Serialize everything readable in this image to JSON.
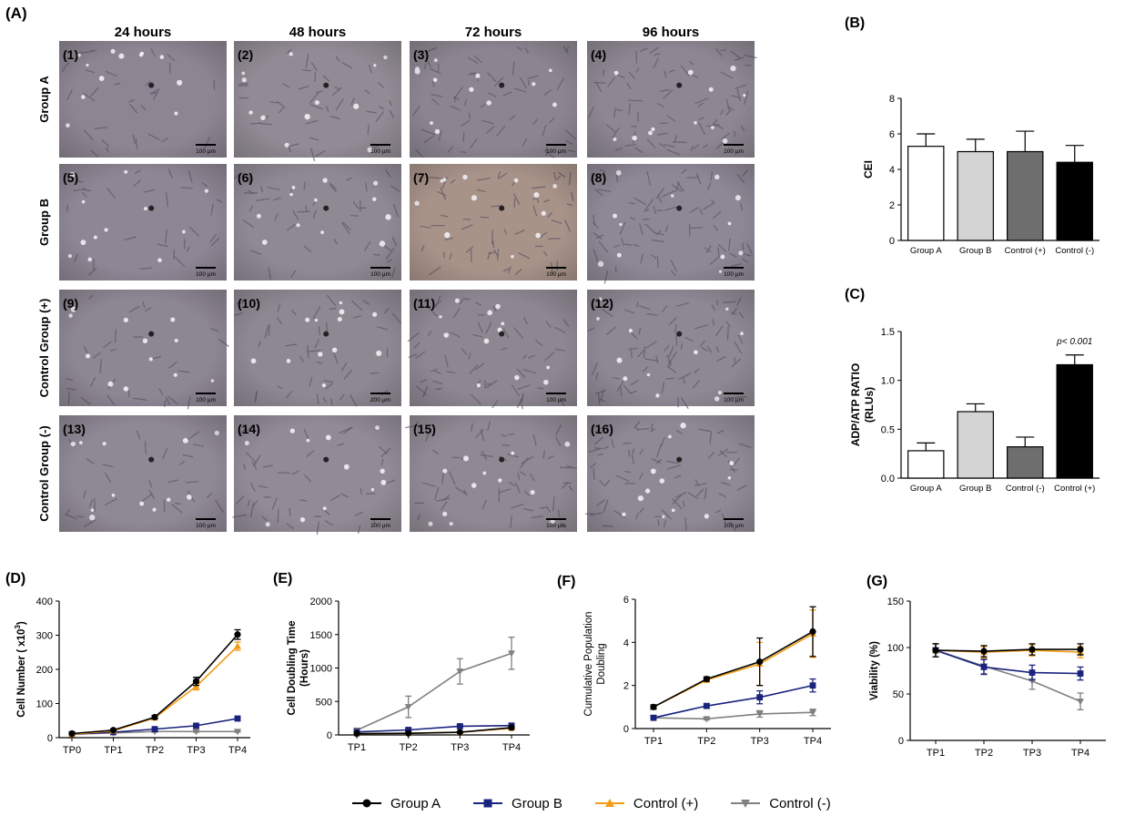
{
  "panel_a": {
    "label": "(A)",
    "columns": [
      "24 hours",
      "48 hours",
      "72 hours",
      "96 hours"
    ],
    "rows": [
      "Group A",
      "Group B",
      "Control Group (+)",
      "Control Group (-)"
    ],
    "tiles": [
      "(1)",
      "(2)",
      "(3)",
      "(4)",
      "(5)",
      "(6)",
      "(7)",
      "(8)",
      "(9)",
      "(10)",
      "(11)",
      "(12)",
      "(13)",
      "(14)",
      "(15)",
      "(16)"
    ],
    "scale_bar": "100 µm"
  },
  "colors": {
    "group_a": "#000000",
    "group_b": "#1a237e",
    "control_pos": "#f39c12",
    "control_neg": "#808080",
    "bar_white": "#ffffff",
    "bar_light": "#d4d4d4",
    "bar_dark": "#6e6e6e",
    "bar_black": "#000000"
  },
  "legend": [
    {
      "label": "Group A",
      "color": "#000000",
      "marker": "circle"
    },
    {
      "label": "Group B",
      "color": "#1a237e",
      "marker": "square"
    },
    {
      "label": "Control (+)",
      "color": "#f39c12",
      "marker": "triangle-up"
    },
    {
      "label": "Control (-)",
      "color": "#808080",
      "marker": "triangle-down"
    }
  ],
  "chart_data": [
    {
      "id": "B",
      "label": "(B)",
      "type": "bar",
      "categories": [
        "Group A",
        "Group B",
        "Control (+)",
        "Control (-)"
      ],
      "values": [
        5.3,
        5.0,
        5.0,
        4.4
      ],
      "errors": [
        0.7,
        0.7,
        1.15,
        0.95
      ],
      "bar_colors": [
        "#ffffff",
        "#d4d4d4",
        "#6e6e6e",
        "#000000"
      ],
      "ylabel": "CEI",
      "ylim": [
        0,
        8
      ],
      "yticks": [
        "0",
        "2",
        "4",
        "6",
        "8"
      ]
    },
    {
      "id": "C",
      "label": "(C)",
      "type": "bar",
      "categories": [
        "Group A",
        "Group B",
        "Control (-)",
        "Control (+)"
      ],
      "values": [
        0.28,
        0.68,
        0.32,
        1.16
      ],
      "errors": [
        0.08,
        0.08,
        0.1,
        0.1
      ],
      "bar_colors": [
        "#ffffff",
        "#d4d4d4",
        "#6e6e6e",
        "#000000"
      ],
      "ylabel": "ADP/ATP RATIO",
      "ylabel2": "(RLUs)",
      "ylim": [
        0,
        1.5
      ],
      "yticks": [
        "0.0",
        "0.5",
        "1.0",
        "1.5"
      ],
      "annotation": "p< 0.001"
    },
    {
      "id": "D",
      "label": "(D)",
      "type": "line",
      "x": [
        "TP0",
        "TP1",
        "TP2",
        "TP3",
        "TP4"
      ],
      "ylabel": "Cell Number ( x10",
      "ylabel_sup": "3",
      "ylabel_end": ")",
      "ylim": [
        0,
        400
      ],
      "yticks": [
        "0",
        "100",
        "200",
        "300",
        "400"
      ],
      "series": [
        {
          "name": "Group A",
          "values": [
            12,
            22,
            60,
            165,
            302
          ],
          "errors": [
            3,
            3,
            5,
            12,
            14
          ]
        },
        {
          "name": "Group B",
          "values": [
            10,
            16,
            25,
            35,
            56
          ],
          "errors": [
            2,
            2,
            3,
            4,
            4
          ]
        },
        {
          "name": "Control (+)",
          "values": [
            10,
            20,
            58,
            150,
            268
          ],
          "errors": [
            3,
            3,
            5,
            10,
            12
          ]
        },
        {
          "name": "Control (-)",
          "values": [
            10,
            14,
            18,
            18,
            18
          ],
          "errors": [
            2,
            2,
            2,
            2,
            2
          ]
        }
      ]
    },
    {
      "id": "E",
      "label": "(E)",
      "type": "line",
      "x": [
        "TP1",
        "TP2",
        "TP3",
        "TP4"
      ],
      "ylabel": "Cell Doubling Time",
      "ylabel2": "(Hours)",
      "ylim": [
        0,
        2000
      ],
      "yticks": [
        "0",
        "500",
        "1000",
        "1500",
        "2000"
      ],
      "series": [
        {
          "name": "Group A",
          "values": [
            20,
            25,
            40,
            110
          ],
          "errors": [
            5,
            5,
            10,
            20
          ]
        },
        {
          "name": "Group B",
          "values": [
            45,
            75,
            130,
            140
          ],
          "errors": [
            10,
            15,
            20,
            25
          ]
        },
        {
          "name": "Control (+)",
          "values": [
            20,
            25,
            40,
            100
          ],
          "errors": [
            5,
            5,
            10,
            20
          ]
        },
        {
          "name": "Control (-)",
          "values": [
            70,
            420,
            950,
            1220
          ],
          "errors": [
            20,
            160,
            190,
            240
          ]
        }
      ]
    },
    {
      "id": "F",
      "label": "(F)",
      "type": "line",
      "x": [
        "TP1",
        "TP2",
        "TP3",
        "TP4"
      ],
      "ylabel": "Cumulative Population",
      "ylabel2": "Doubling",
      "ylim": [
        0,
        6
      ],
      "yticks": [
        "0",
        "2",
        "4",
        "6"
      ],
      "series": [
        {
          "name": "Group A",
          "values": [
            1.0,
            2.3,
            3.1,
            4.5
          ],
          "errors": [
            0.1,
            0.1,
            1.1,
            1.15
          ]
        },
        {
          "name": "Group B",
          "values": [
            0.5,
            1.05,
            1.45,
            2.0
          ],
          "errors": [
            0.05,
            0.1,
            0.3,
            0.3
          ]
        },
        {
          "name": "Control (+)",
          "values": [
            1.0,
            2.25,
            3.0,
            4.4
          ],
          "errors": [
            0.1,
            0.1,
            1.0,
            1.1
          ]
        },
        {
          "name": "Control (-)",
          "values": [
            0.5,
            0.45,
            0.68,
            0.75
          ],
          "errors": [
            0.05,
            0.05,
            0.15,
            0.15
          ]
        }
      ]
    },
    {
      "id": "G",
      "label": "(G)",
      "type": "line",
      "x": [
        "TP1",
        "TP2",
        "TP3",
        "TP4"
      ],
      "ylabel": "Viability (%)",
      "ylim": [
        0,
        150
      ],
      "yticks": [
        "0",
        "50",
        "100",
        "150"
      ],
      "series": [
        {
          "name": "Group A",
          "values": [
            97,
            96,
            98,
            98
          ],
          "errors": [
            7,
            6,
            6,
            6
          ]
        },
        {
          "name": "Group B",
          "values": [
            97,
            79,
            73,
            72
          ],
          "errors": [
            7,
            8,
            8,
            7
          ]
        },
        {
          "name": "Control (+)",
          "values": [
            97,
            95,
            97,
            95
          ],
          "errors": [
            7,
            6,
            6,
            6
          ]
        },
        {
          "name": "Control (-)",
          "values": [
            97,
            80,
            64,
            42
          ],
          "errors": [
            7,
            8,
            9,
            9
          ]
        }
      ]
    }
  ]
}
